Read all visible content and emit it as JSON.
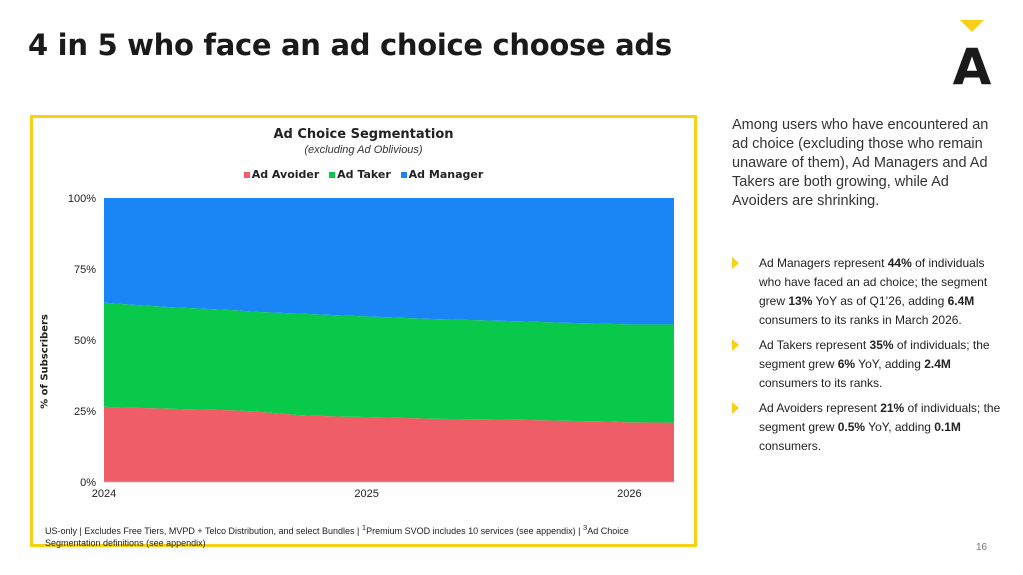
{
  "title": "4 in 5 who face an ad choice choose ads",
  "logo_letter": "A",
  "colors": {
    "accent": "#f7d117",
    "avoider": "#ef5e67",
    "taker": "#09c94a",
    "manager": "#1a86f5"
  },
  "chart_data": {
    "type": "area",
    "stacked": true,
    "title": "Ad Choice Segmentation",
    "subtitle": "(excluding Ad Oblivious)",
    "ylabel": "% of Subscribers",
    "xlabel": "",
    "ylim": [
      0,
      100
    ],
    "yticks": [
      "0%",
      "25%",
      "50%",
      "75%",
      "100%"
    ],
    "xticks": [
      {
        "value": 2024.0,
        "label": "2024"
      },
      {
        "value": 2025.0,
        "label": "2025"
      },
      {
        "value": 2026.0,
        "label": "2026"
      }
    ],
    "xlim": [
      2024.0,
      2026.17
    ],
    "x": [
      2024.0,
      2024.08,
      2024.25,
      2024.5,
      2024.58,
      2024.75,
      2024.92,
      2025.0,
      2025.08,
      2025.25,
      2025.5,
      2025.58,
      2025.75,
      2025.92,
      2026.0,
      2026.17
    ],
    "series": [
      {
        "name": "Ad Avoider",
        "values": [
          26.5,
          26.2,
          25.8,
          25.2,
          24.8,
          23.5,
          23.0,
          22.9,
          22.7,
          22.3,
          22.0,
          21.9,
          21.6,
          21.3,
          21.0,
          20.9
        ]
      },
      {
        "name": "Ad Taker",
        "values": [
          36.7,
          36.4,
          35.8,
          35.3,
          35.1,
          35.8,
          35.6,
          35.4,
          35.3,
          35.1,
          34.8,
          34.7,
          34.5,
          34.4,
          34.5,
          34.6
        ]
      },
      {
        "name": "Ad Manager",
        "values": [
          36.8,
          37.4,
          38.4,
          39.5,
          40.1,
          40.7,
          41.4,
          41.7,
          42.0,
          42.6,
          43.2,
          43.4,
          43.9,
          44.3,
          44.5,
          44.5
        ]
      }
    ],
    "legend": "top",
    "grid": false
  },
  "footnote": {
    "part1": "US-only | Excludes Free Tiers, MVPD + Telco Distribution, and select Bundles | ",
    "sup1": "1",
    "part2": "Premium SVOD includes 10 services (see appendix) | ",
    "sup2": "3",
    "part3": "Ad Choice Segmentation definitions (see appendix)"
  },
  "intro": "Among users who have encountered an ad choice (excluding those who remain unaware of them), Ad Managers and Ad Takers are both growing, while Ad Avoiders are shrinking.",
  "bullets": [
    [
      {
        "t": "Ad Managers represent ",
        "b": false
      },
      {
        "t": "44%",
        "b": true
      },
      {
        "t": " of individuals who have faced an ad choice; the segment grew ",
        "b": false
      },
      {
        "t": "13%",
        "b": true
      },
      {
        "t": " YoY as of Q1’26, adding ",
        "b": false
      },
      {
        "t": "6.4M",
        "b": true
      },
      {
        "t": " consumers to its ranks in March 2026.",
        "b": false
      }
    ],
    [
      {
        "t": "Ad Takers represent ",
        "b": false
      },
      {
        "t": "35%",
        "b": true
      },
      {
        "t": " of individuals; the segment grew ",
        "b": false
      },
      {
        "t": "6%",
        "b": true
      },
      {
        "t": " YoY, adding ",
        "b": false
      },
      {
        "t": "2.4M",
        "b": true
      },
      {
        "t": " consumers to its ranks.",
        "b": false
      }
    ],
    [
      {
        "t": "Ad Avoiders represent ",
        "b": false
      },
      {
        "t": "21%",
        "b": true
      },
      {
        "t": " of individuals; the segment grew ",
        "b": false
      },
      {
        "t": "0.5%",
        "b": true
      },
      {
        "t": " YoY, adding ",
        "b": false
      },
      {
        "t": "0.1M",
        "b": true
      },
      {
        "t": " consumers.",
        "b": false
      }
    ]
  ],
  "page_number": "16"
}
